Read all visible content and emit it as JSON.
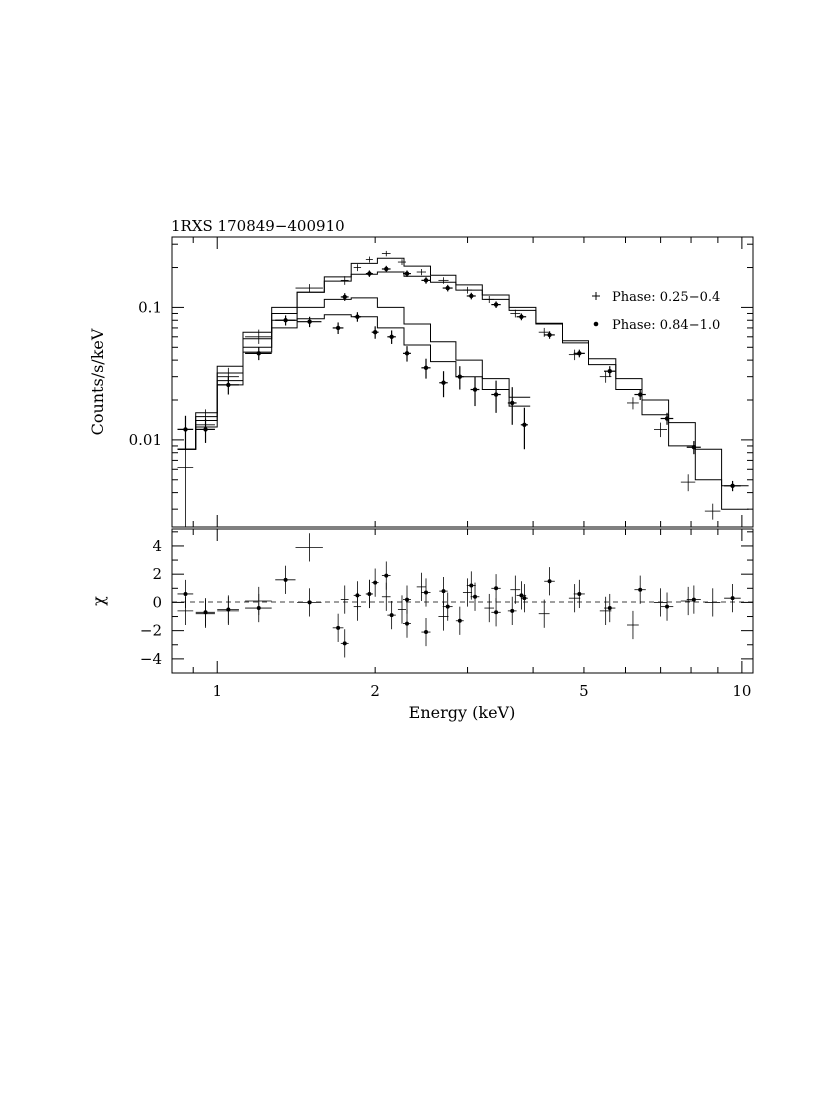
{
  "chart_data": {
    "type": "scatter",
    "title": "1RXS 170849−400910",
    "xlabel": "Energy (keV)",
    "xscale": "log",
    "xlim": [
      0.82,
      10.5
    ],
    "xticks": [
      {
        "value": 1,
        "label": "1"
      },
      {
        "value": 2,
        "label": "2"
      },
      {
        "value": 5,
        "label": "5"
      },
      {
        "value": 10,
        "label": "10"
      }
    ],
    "legend_position": "right",
    "top_panel": {
      "ylabel": "Counts/s/keV",
      "yscale": "log",
      "ylim": [
        0.0022,
        0.34
      ],
      "yticks": [
        {
          "value": 0.01,
          "label": "0.01"
        },
        {
          "value": 0.1,
          "label": "0.1"
        }
      ]
    },
    "bottom_panel": {
      "ylabel": "χ",
      "ylim": [
        -5,
        5.2
      ],
      "yticks": [
        {
          "value": 4,
          "label": "4"
        },
        {
          "value": 2,
          "label": "2"
        },
        {
          "value": 0,
          "label": "0"
        },
        {
          "value": -2,
          "label": "−2"
        },
        {
          "value": -4,
          "label": "−4"
        }
      ]
    },
    "series": [
      {
        "name": "Phase: 0.25−0.4",
        "marker": "cross",
        "points": [
          {
            "x": 0.87,
            "y": 0.0062,
            "xerr": 0.03,
            "ylo": 0.0022,
            "yhi": 0.0125,
            "chi": -0.6
          },
          {
            "x": 0.95,
            "y": 0.013,
            "xerr": 0.04,
            "ylo": 0.0095,
            "yhi": 0.017,
            "chi": -0.8
          },
          {
            "x": 1.05,
            "y": 0.03,
            "xerr": 0.05,
            "ylo": 0.025,
            "yhi": 0.035,
            "chi": -0.6
          },
          {
            "x": 1.2,
            "y": 0.06,
            "xerr": 0.07,
            "ylo": 0.053,
            "yhi": 0.068,
            "chi": 0.1
          },
          {
            "x": 1.5,
            "y": 0.14,
            "xerr": 0.09,
            "ylo": 0.13,
            "yhi": 0.15,
            "chi": 3.9
          },
          {
            "x": 1.75,
            "y": 0.16,
            "xerr": 0.03,
            "ylo": 0.148,
            "yhi": 0.172,
            "chi": 0.2
          },
          {
            "x": 1.85,
            "y": 0.2,
            "xerr": 0.03,
            "ylo": 0.188,
            "yhi": 0.212,
            "chi": -0.3
          },
          {
            "x": 1.95,
            "y": 0.23,
            "xerr": 0.03,
            "ylo": 0.218,
            "yhi": 0.242,
            "chi": 0.6
          },
          {
            "x": 2.1,
            "y": 0.255,
            "xerr": 0.04,
            "ylo": 0.243,
            "yhi": 0.267,
            "chi": 0.4
          },
          {
            "x": 2.25,
            "y": 0.22,
            "xerr": 0.04,
            "ylo": 0.209,
            "yhi": 0.231,
            "chi": -0.5
          },
          {
            "x": 2.45,
            "y": 0.185,
            "xerr": 0.05,
            "ylo": 0.175,
            "yhi": 0.195,
            "chi": 1.1
          },
          {
            "x": 2.7,
            "y": 0.16,
            "xerr": 0.06,
            "ylo": 0.151,
            "yhi": 0.169,
            "chi": -1.0
          },
          {
            "x": 3.0,
            "y": 0.135,
            "xerr": 0.06,
            "ylo": 0.127,
            "yhi": 0.143,
            "chi": 0.7
          },
          {
            "x": 3.3,
            "y": 0.115,
            "xerr": 0.07,
            "ylo": 0.108,
            "yhi": 0.122,
            "chi": -0.4
          },
          {
            "x": 3.7,
            "y": 0.09,
            "xerr": 0.08,
            "ylo": 0.084,
            "yhi": 0.096,
            "chi": 0.9
          },
          {
            "x": 4.2,
            "y": 0.065,
            "xerr": 0.1,
            "ylo": 0.06,
            "yhi": 0.07,
            "chi": -0.8
          },
          {
            "x": 4.8,
            "y": 0.044,
            "xerr": 0.12,
            "ylo": 0.04,
            "yhi": 0.048,
            "chi": 0.3
          },
          {
            "x": 5.5,
            "y": 0.03,
            "xerr": 0.14,
            "ylo": 0.027,
            "yhi": 0.033,
            "chi": -0.6
          },
          {
            "x": 6.2,
            "y": 0.019,
            "xerr": 0.16,
            "ylo": 0.017,
            "yhi": 0.021,
            "chi": -1.6
          },
          {
            "x": 7.0,
            "y": 0.012,
            "xerr": 0.2,
            "ylo": 0.0105,
            "yhi": 0.0135,
            "chi": 0.0
          },
          {
            "x": 7.9,
            "y": 0.0048,
            "xerr": 0.25,
            "ylo": 0.0041,
            "yhi": 0.0055,
            "chi": 0.1
          },
          {
            "x": 8.8,
            "y": 0.0029,
            "xerr": 0.3,
            "ylo": 0.0025,
            "yhi": 0.0033,
            "chi": 0.0
          }
        ]
      },
      {
        "name": "Phase: 0.84−1.0",
        "marker": "dot",
        "points": [
          {
            "x": 0.87,
            "y": 0.012,
            "xerr": 0.03,
            "ylo": 0.0085,
            "yhi": 0.0152,
            "chi": 0.6
          },
          {
            "x": 0.95,
            "y": 0.012,
            "xerr": 0.04,
            "ylo": 0.0095,
            "yhi": 0.0145,
            "chi": -0.7
          },
          {
            "x": 1.05,
            "y": 0.026,
            "xerr": 0.05,
            "ylo": 0.022,
            "yhi": 0.03,
            "chi": -0.5
          },
          {
            "x": 1.2,
            "y": 0.045,
            "xerr": 0.07,
            "ylo": 0.04,
            "yhi": 0.05,
            "chi": -0.4
          },
          {
            "x": 1.35,
            "y": 0.08,
            "xerr": 0.06,
            "ylo": 0.073,
            "yhi": 0.087,
            "chi": 1.6
          },
          {
            "x": 1.5,
            "y": 0.078,
            "xerr": 0.08,
            "ylo": 0.071,
            "yhi": 0.085,
            "chi": 0.0
          },
          {
            "x": 1.7,
            "y": 0.07,
            "xerr": 0.04,
            "ylo": 0.063,
            "yhi": 0.077,
            "chi": -1.8
          },
          {
            "x": 1.85,
            "y": 0.085,
            "xerr": 0.03,
            "ylo": 0.078,
            "yhi": 0.092,
            "chi": 0.5
          },
          {
            "x": 2.0,
            "y": 0.065,
            "xerr": 0.03,
            "ylo": 0.058,
            "yhi": 0.072,
            "chi": 1.4
          },
          {
            "x": 2.15,
            "y": 0.06,
            "xerr": 0.04,
            "ylo": 0.053,
            "yhi": 0.067,
            "chi": -0.9
          },
          {
            "x": 2.3,
            "y": 0.045,
            "xerr": 0.04,
            "ylo": 0.039,
            "yhi": 0.051,
            "chi": 0.2
          },
          {
            "x": 2.5,
            "y": 0.035,
            "xerr": 0.05,
            "ylo": 0.029,
            "yhi": 0.041,
            "chi": -2.1
          },
          {
            "x": 2.7,
            "y": 0.027,
            "xerr": 0.05,
            "ylo": 0.021,
            "yhi": 0.033,
            "chi": 0.8
          },
          {
            "x": 2.9,
            "y": 0.03,
            "xerr": 0.05,
            "ylo": 0.024,
            "yhi": 0.036,
            "chi": -1.3
          },
          {
            "x": 3.1,
            "y": 0.024,
            "xerr": 0.06,
            "ylo": 0.018,
            "yhi": 0.03,
            "chi": 0.4
          },
          {
            "x": 3.4,
            "y": 0.022,
            "xerr": 0.07,
            "ylo": 0.016,
            "yhi": 0.028,
            "chi": 1.0
          },
          {
            "x": 3.65,
            "y": 0.019,
            "xerr": 0.07,
            "ylo": 0.013,
            "yhi": 0.025,
            "chi": -0.6
          },
          {
            "x": 3.85,
            "y": 0.013,
            "xerr": 0.06,
            "ylo": 0.0085,
            "yhi": 0.0175,
            "chi": 0.3
          },
          {
            "x": 1.75,
            "y": 0.12,
            "xerr": 0.03,
            "ylo": 0.112,
            "yhi": 0.128,
            "chi": -2.9
          },
          {
            "x": 1.95,
            "y": 0.18,
            "xerr": 0.03,
            "ylo": 0.17,
            "yhi": 0.19,
            "chi": 0.6
          },
          {
            "x": 2.1,
            "y": 0.195,
            "xerr": 0.04,
            "ylo": 0.184,
            "yhi": 0.206,
            "chi": 1.9
          },
          {
            "x": 2.3,
            "y": 0.18,
            "xerr": 0.04,
            "ylo": 0.17,
            "yhi": 0.19,
            "chi": -1.5
          },
          {
            "x": 2.5,
            "y": 0.16,
            "xerr": 0.05,
            "ylo": 0.151,
            "yhi": 0.169,
            "chi": 0.7
          },
          {
            "x": 2.75,
            "y": 0.14,
            "xerr": 0.06,
            "ylo": 0.132,
            "yhi": 0.148,
            "chi": -0.3
          },
          {
            "x": 3.05,
            "y": 0.122,
            "xerr": 0.06,
            "ylo": 0.115,
            "yhi": 0.129,
            "chi": 1.2
          },
          {
            "x": 3.4,
            "y": 0.105,
            "xerr": 0.07,
            "ylo": 0.099,
            "yhi": 0.111,
            "chi": -0.7
          },
          {
            "x": 3.8,
            "y": 0.085,
            "xerr": 0.08,
            "ylo": 0.08,
            "yhi": 0.09,
            "chi": 0.5
          },
          {
            "x": 4.3,
            "y": 0.062,
            "xerr": 0.1,
            "ylo": 0.058,
            "yhi": 0.066,
            "chi": 1.5
          },
          {
            "x": 4.9,
            "y": 0.045,
            "xerr": 0.12,
            "ylo": 0.042,
            "yhi": 0.048,
            "chi": 0.6
          },
          {
            "x": 5.6,
            "y": 0.033,
            "xerr": 0.14,
            "ylo": 0.03,
            "yhi": 0.036,
            "chi": -0.4
          },
          {
            "x": 6.4,
            "y": 0.022,
            "xerr": 0.16,
            "ylo": 0.02,
            "yhi": 0.024,
            "chi": 0.9
          },
          {
            "x": 7.2,
            "y": 0.0145,
            "xerr": 0.2,
            "ylo": 0.013,
            "yhi": 0.016,
            "chi": -0.3
          },
          {
            "x": 8.1,
            "y": 0.0088,
            "xerr": 0.25,
            "ylo": 0.0078,
            "yhi": 0.0098,
            "chi": 0.2
          },
          {
            "x": 9.6,
            "y": 0.0045,
            "xerr": 0.35,
            "ylo": 0.0041,
            "yhi": 0.0049,
            "chi": 0.3
          }
        ]
      }
    ],
    "models": [
      {
        "edges": [
          0.84,
          0.91,
          1.0,
          1.12,
          1.27,
          1.42,
          1.6,
          1.8,
          2.02,
          2.27,
          2.55,
          2.85,
          3.2,
          3.6,
          4.05,
          4.55,
          5.1,
          5.75,
          6.45,
          7.25,
          8.15,
          9.15,
          10.3
        ],
        "values": [
          0.0085,
          0.014,
          0.032,
          0.058,
          0.09,
          0.13,
          0.17,
          0.215,
          0.235,
          0.205,
          0.175,
          0.148,
          0.124,
          0.1,
          0.076,
          0.054,
          0.037,
          0.024,
          0.0155,
          0.009,
          0.005,
          0.003
        ]
      },
      {
        "edges": [
          0.84,
          0.91,
          1.0,
          1.12,
          1.27,
          1.42,
          1.6,
          1.8,
          2.02,
          2.27,
          2.55,
          2.85,
          3.2,
          3.6,
          4.05,
          4.55,
          5.1,
          5.75,
          6.45,
          7.25,
          8.15,
          9.15,
          10.3
        ],
        "values": [
          0.0085,
          0.016,
          0.036,
          0.065,
          0.1,
          0.13,
          0.158,
          0.178,
          0.185,
          0.172,
          0.155,
          0.135,
          0.115,
          0.095,
          0.075,
          0.056,
          0.041,
          0.029,
          0.02,
          0.0135,
          0.0085,
          0.0045
        ]
      },
      {
        "edges": [
          0.84,
          0.91,
          1.0,
          1.12,
          1.27,
          1.42,
          1.6,
          1.8,
          2.02,
          2.27,
          2.55,
          2.85,
          3.2,
          3.6,
          3.95
        ],
        "values": [
          0.0085,
          0.015,
          0.028,
          0.05,
          0.08,
          0.1,
          0.115,
          0.118,
          0.1,
          0.075,
          0.055,
          0.04,
          0.029,
          0.021
        ]
      },
      {
        "edges": [
          0.84,
          0.91,
          1.0,
          1.12,
          1.27,
          1.42,
          1.6,
          1.8,
          2.02,
          2.27,
          2.55,
          2.85,
          3.2,
          3.6,
          3.95
        ],
        "values": [
          0.0085,
          0.0125,
          0.026,
          0.046,
          0.07,
          0.082,
          0.088,
          0.085,
          0.07,
          0.052,
          0.039,
          0.03,
          0.024,
          0.018
        ]
      }
    ]
  }
}
